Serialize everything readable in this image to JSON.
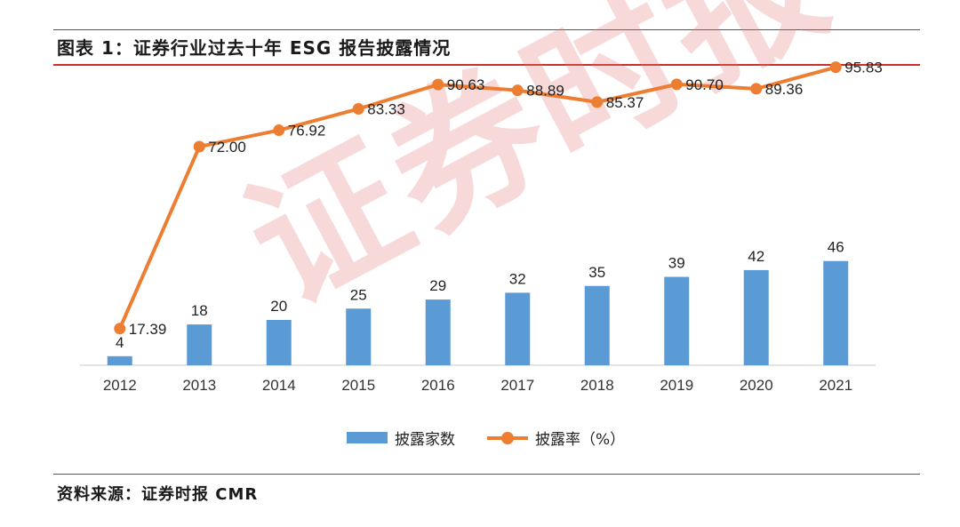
{
  "header": {
    "title": "图表 1：证券行业过去十年 ESG 报告披露情况"
  },
  "footer": {
    "source": "资料来源：证券时报 CMR"
  },
  "watermark": {
    "text": "证券时报"
  },
  "colors": {
    "bar": "#5b9bd5",
    "line": "#ed7d31",
    "rule_accent": "#c8312c"
  },
  "chart_data": {
    "type": "bar+line",
    "categories": [
      "2012",
      "2013",
      "2014",
      "2015",
      "2016",
      "2017",
      "2018",
      "2019",
      "2020",
      "2021"
    ],
    "series": [
      {
        "name": "披露家数",
        "type": "bar",
        "values": [
          4,
          18,
          20,
          25,
          29,
          32,
          35,
          39,
          42,
          46
        ],
        "labels": [
          "4",
          "18",
          "20",
          "25",
          "29",
          "32",
          "35",
          "39",
          "42",
          "46"
        ]
      },
      {
        "name": "披露率（%）",
        "type": "line",
        "values": [
          17.39,
          72.0,
          76.92,
          83.33,
          90.63,
          88.89,
          85.37,
          90.7,
          89.36,
          95.83
        ],
        "labels": [
          "17.39",
          "72.00",
          "76.92",
          "83.33",
          "90.63",
          "88.89",
          "85.37",
          "90.70",
          "89.36",
          "95.83"
        ]
      }
    ],
    "legend_position": "bottom",
    "grid": false
  }
}
